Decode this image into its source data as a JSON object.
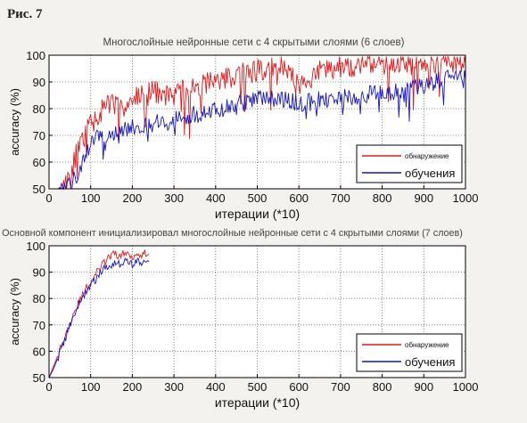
{
  "figure_label": "Рис. 7",
  "colors": {
    "detection": "#e21a1a",
    "training": "#1414c8",
    "background": "#ffffff",
    "page": "#f4f2ee"
  },
  "chart_data": [
    {
      "type": "line",
      "title": "Многослойные нейронные сети с 4 скрытыми слоями (6 слоев)",
      "xlabel": "итерации (*10)",
      "ylabel": "accuracy (%)",
      "xlim": [
        0,
        1000
      ],
      "ylim": [
        50,
        100
      ],
      "x_ticks": [
        "0",
        "100",
        "200",
        "300",
        "400",
        "500",
        "600",
        "700",
        "800",
        "900",
        "1000"
      ],
      "y_ticks": [
        "50",
        "60",
        "70",
        "80",
        "90",
        "100"
      ],
      "grid": true,
      "legend_position": "bottom-right",
      "series": [
        {
          "name": "обнаружение",
          "color": "#e21a1a",
          "x": [
            0,
            25,
            40,
            55,
            70,
            85,
            100,
            120,
            150,
            180,
            200,
            250,
            300,
            350,
            400,
            450,
            500,
            550,
            560,
            580,
            600,
            650,
            700,
            750,
            800,
            850,
            900,
            950,
            1000
          ],
          "y": [
            50,
            50,
            52,
            58,
            65,
            70,
            74,
            78,
            82,
            80,
            84,
            86,
            85,
            88,
            90,
            93,
            94,
            96,
            97,
            92,
            88,
            94,
            96,
            96,
            97,
            97,
            97,
            98,
            97
          ]
        },
        {
          "name": "обучения",
          "color": "#1414c8",
          "x": [
            0,
            30,
            50,
            70,
            90,
            100,
            120,
            150,
            180,
            200,
            250,
            300,
            350,
            400,
            450,
            500,
            550,
            600,
            650,
            700,
            750,
            800,
            850,
            900,
            950,
            1000
          ],
          "y": [
            50,
            50,
            51,
            55,
            62,
            68,
            70,
            71,
            72,
            73,
            74,
            76,
            78,
            79,
            81,
            84,
            84,
            82,
            83,
            84,
            85,
            86,
            87,
            89,
            91,
            91
          ]
        }
      ]
    },
    {
      "type": "line",
      "title": "Основной компонент инициализировал многослойные нейронные сети с 4 скрытыми слоями (7 слоев)",
      "xlabel": "итерации (*10)",
      "ylabel": "accuracy (%)",
      "xlim": [
        0,
        1000
      ],
      "ylim": [
        50,
        100
      ],
      "x_ticks": [
        "0",
        "100",
        "200",
        "300",
        "400",
        "500",
        "600",
        "700",
        "800",
        "900",
        "1000"
      ],
      "y_ticks": [
        "50",
        "60",
        "70",
        "80",
        "90",
        "100"
      ],
      "grid": true,
      "legend_position": "bottom-right",
      "series": [
        {
          "name": "обнаружение",
          "color": "#e21a1a",
          "x": [
            0,
            10,
            20,
            30,
            40,
            50,
            60,
            70,
            80,
            90,
            100,
            110,
            120,
            130,
            140,
            150,
            160,
            170,
            180,
            190,
            200,
            210,
            220,
            230,
            240
          ],
          "y": [
            50,
            54,
            58,
            62,
            66,
            71,
            75,
            78,
            81,
            84,
            86,
            89,
            91,
            93,
            95,
            96,
            97,
            96,
            97,
            97,
            96,
            97,
            97,
            97,
            97
          ]
        },
        {
          "name": "обучения",
          "color": "#1414c8",
          "x": [
            0,
            10,
            20,
            30,
            40,
            50,
            60,
            70,
            80,
            90,
            100,
            110,
            120,
            130,
            140,
            150,
            160,
            170,
            180,
            190,
            200,
            210,
            220,
            230,
            240
          ],
          "y": [
            50,
            53,
            57,
            61,
            65,
            70,
            74,
            77,
            80,
            83,
            85,
            87,
            89,
            91,
            92,
            93,
            94,
            93,
            94,
            94,
            93,
            94,
            94,
            93,
            94
          ]
        }
      ]
    }
  ]
}
